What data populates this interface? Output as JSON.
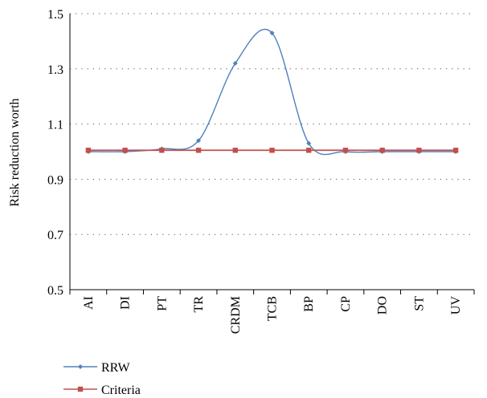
{
  "chart_data": {
    "type": "line",
    "title": "",
    "xlabel": "",
    "ylabel": "Risk reduction worth",
    "ylim": [
      0.5,
      1.5
    ],
    "yticks": [
      "0.5",
      "0.7",
      "0.9",
      "1.1",
      "1.3",
      "1.5"
    ],
    "grid": "horizontal dotted",
    "legend_position": "bottom-left",
    "categories": [
      "AI",
      "DI",
      "PT",
      "TR",
      "CRDM",
      "TCB",
      "BP",
      "CP",
      "DO",
      "ST",
      "UV"
    ],
    "series": [
      {
        "name": "RRW",
        "color": "#4f81bd",
        "marker": "diamond",
        "smooth": true,
        "values": [
          1.0,
          1.0,
          1.01,
          1.04,
          1.32,
          1.43,
          1.03,
          1.0,
          1.0,
          1.0,
          1.0
        ]
      },
      {
        "name": "Criteria",
        "color": "#c0504d",
        "marker": "square",
        "smooth": false,
        "values": [
          1.005,
          1.005,
          1.005,
          1.005,
          1.005,
          1.005,
          1.005,
          1.005,
          1.005,
          1.005,
          1.005
        ]
      }
    ]
  }
}
